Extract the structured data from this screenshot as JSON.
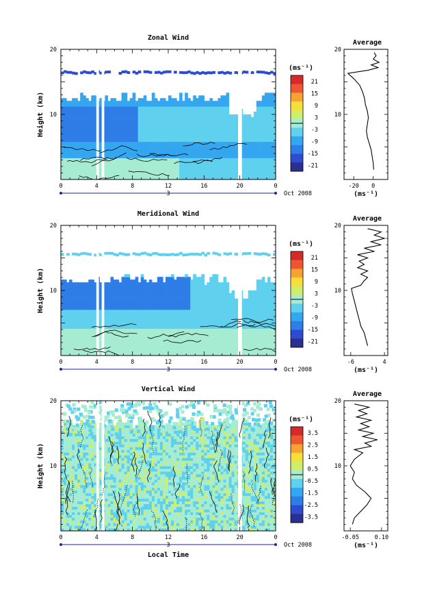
{
  "chart_data": [
    {
      "type": "heatmap",
      "title": "Zonal Wind",
      "ylabel": "Height (km)",
      "ylim": [
        0,
        20
      ],
      "y_ticks": [
        "20",
        "10"
      ],
      "xlim": [
        0,
        24
      ],
      "x_ticks": [
        "0",
        "4",
        "8",
        "12",
        "16",
        "20",
        "0"
      ],
      "date_label": "3",
      "date_suffix": "Oct 2008",
      "colorbar": {
        "unit": "(ms⁻¹)",
        "ticks": [
          "21",
          "15",
          "9",
          "3",
          "-3",
          "-9",
          "-15",
          "-21"
        ],
        "range": [
          -24,
          24
        ]
      },
      "profile": {
        "title": "Average",
        "x_ticks": [
          "-20",
          "0"
        ],
        "xlim": [
          -30,
          15
        ],
        "xlabel": "(ms⁻¹)",
        "y_ticks": [
          "20",
          "10"
        ],
        "points": [
          [
            0.5,
            1.5
          ],
          [
            0,
            2.5
          ],
          [
            -1,
            3.5
          ],
          [
            -2,
            4.5
          ],
          [
            -4,
            5.5
          ],
          [
            -6,
            6.5
          ],
          [
            -7,
            7.5
          ],
          [
            -6,
            8.5
          ],
          [
            -5,
            9.5
          ],
          [
            -6,
            10.5
          ],
          [
            -8,
            11.5
          ],
          [
            -9,
            12.5
          ],
          [
            -11,
            13.5
          ],
          [
            -14,
            14.5
          ],
          [
            -20,
            15.5
          ],
          [
            -26,
            16.3
          ],
          [
            -5,
            16.8
          ],
          [
            5,
            17.2
          ],
          [
            -2,
            17.6
          ],
          [
            6,
            18
          ],
          [
            0,
            18.5
          ],
          [
            3,
            19
          ],
          [
            1,
            19.5
          ]
        ]
      }
    },
    {
      "type": "heatmap",
      "title": "Meridional Wind",
      "ylabel": "Height (km)",
      "ylim": [
        0,
        20
      ],
      "y_ticks": [
        "20",
        "10"
      ],
      "xlim": [
        0,
        24
      ],
      "x_ticks": [
        "0",
        "4",
        "8",
        "12",
        "16",
        "20",
        "0"
      ],
      "date_label": "3",
      "date_suffix": "Oct 2008",
      "colorbar": {
        "unit": "(ms⁻¹)",
        "ticks": [
          "21",
          "15",
          "9",
          "3",
          "-3",
          "-9",
          "-15",
          "-21"
        ],
        "range": [
          -24,
          24
        ]
      },
      "profile": {
        "title": "Average",
        "x_ticks": [
          "-6",
          "4"
        ],
        "xlim": [
          -8,
          5
        ],
        "xlabel": "(ms⁻¹)",
        "y_ticks": [
          "20",
          "10"
        ],
        "points": [
          [
            -1,
            1.5
          ],
          [
            -1.5,
            2.5
          ],
          [
            -2,
            3.5
          ],
          [
            -3,
            4.5
          ],
          [
            -3.5,
            5.5
          ],
          [
            -4,
            6.5
          ],
          [
            -4.5,
            7.5
          ],
          [
            -5,
            8.5
          ],
          [
            -5.5,
            9.5
          ],
          [
            -5.8,
            10.3
          ],
          [
            -3,
            10.8
          ],
          [
            -2,
            11.5
          ],
          [
            -1,
            12
          ],
          [
            -3,
            12.5
          ],
          [
            -1,
            13
          ],
          [
            -4,
            13.5
          ],
          [
            -2,
            14
          ],
          [
            -3.5,
            14.5
          ],
          [
            -1,
            15
          ],
          [
            -4,
            15.5
          ],
          [
            1,
            16
          ],
          [
            -2,
            16.5
          ],
          [
            3,
            17
          ],
          [
            0,
            17.5
          ],
          [
            4,
            18
          ],
          [
            1,
            18.5
          ],
          [
            3,
            19
          ],
          [
            -1,
            19.5
          ]
        ]
      }
    },
    {
      "type": "heatmap",
      "title": "Vertical Wind",
      "xlabel": "Local Time",
      "ylabel": "Height (km)",
      "ylim": [
        0,
        20
      ],
      "y_ticks": [
        "20",
        "10"
      ],
      "xlim": [
        0,
        24
      ],
      "x_ticks": [
        "0",
        "4",
        "8",
        "12",
        "16",
        "20",
        "0"
      ],
      "date_label": "3",
      "date_suffix": "Oct 2008",
      "colorbar": {
        "unit": "(ms⁻¹)",
        "ticks": [
          "3.5",
          "2.5",
          "1.5",
          "0.5",
          "-0.5",
          "-1.5",
          "-2.5",
          "-3.5"
        ],
        "range": [
          -4,
          4
        ]
      },
      "profile": {
        "title": "Average",
        "x_ticks": [
          "-0.05",
          "0.10"
        ],
        "xlim": [
          -0.08,
          0.13
        ],
        "xlabel": "(ms⁻¹)",
        "y_ticks": [
          "20",
          "10"
        ],
        "points": [
          [
            -0.04,
            1
          ],
          [
            -0.03,
            2
          ],
          [
            0.0,
            3
          ],
          [
            0.03,
            4
          ],
          [
            0.05,
            5
          ],
          [
            0.02,
            6
          ],
          [
            -0.02,
            7
          ],
          [
            -0.04,
            8
          ],
          [
            -0.03,
            9
          ],
          [
            -0.05,
            10
          ],
          [
            -0.03,
            11
          ],
          [
            0.01,
            12
          ],
          [
            -0.03,
            12.5
          ],
          [
            0.05,
            13
          ],
          [
            0.02,
            13.5
          ],
          [
            0.08,
            14
          ],
          [
            0.01,
            14.5
          ],
          [
            0.06,
            15
          ],
          [
            -0.01,
            15.5
          ],
          [
            0.04,
            16
          ],
          [
            0.0,
            16.5
          ],
          [
            0.05,
            17
          ],
          [
            -0.02,
            17.5
          ],
          [
            0.03,
            18
          ],
          [
            -0.01,
            18.5
          ],
          [
            0.04,
            19
          ],
          [
            -0.03,
            19.5
          ]
        ]
      }
    }
  ]
}
